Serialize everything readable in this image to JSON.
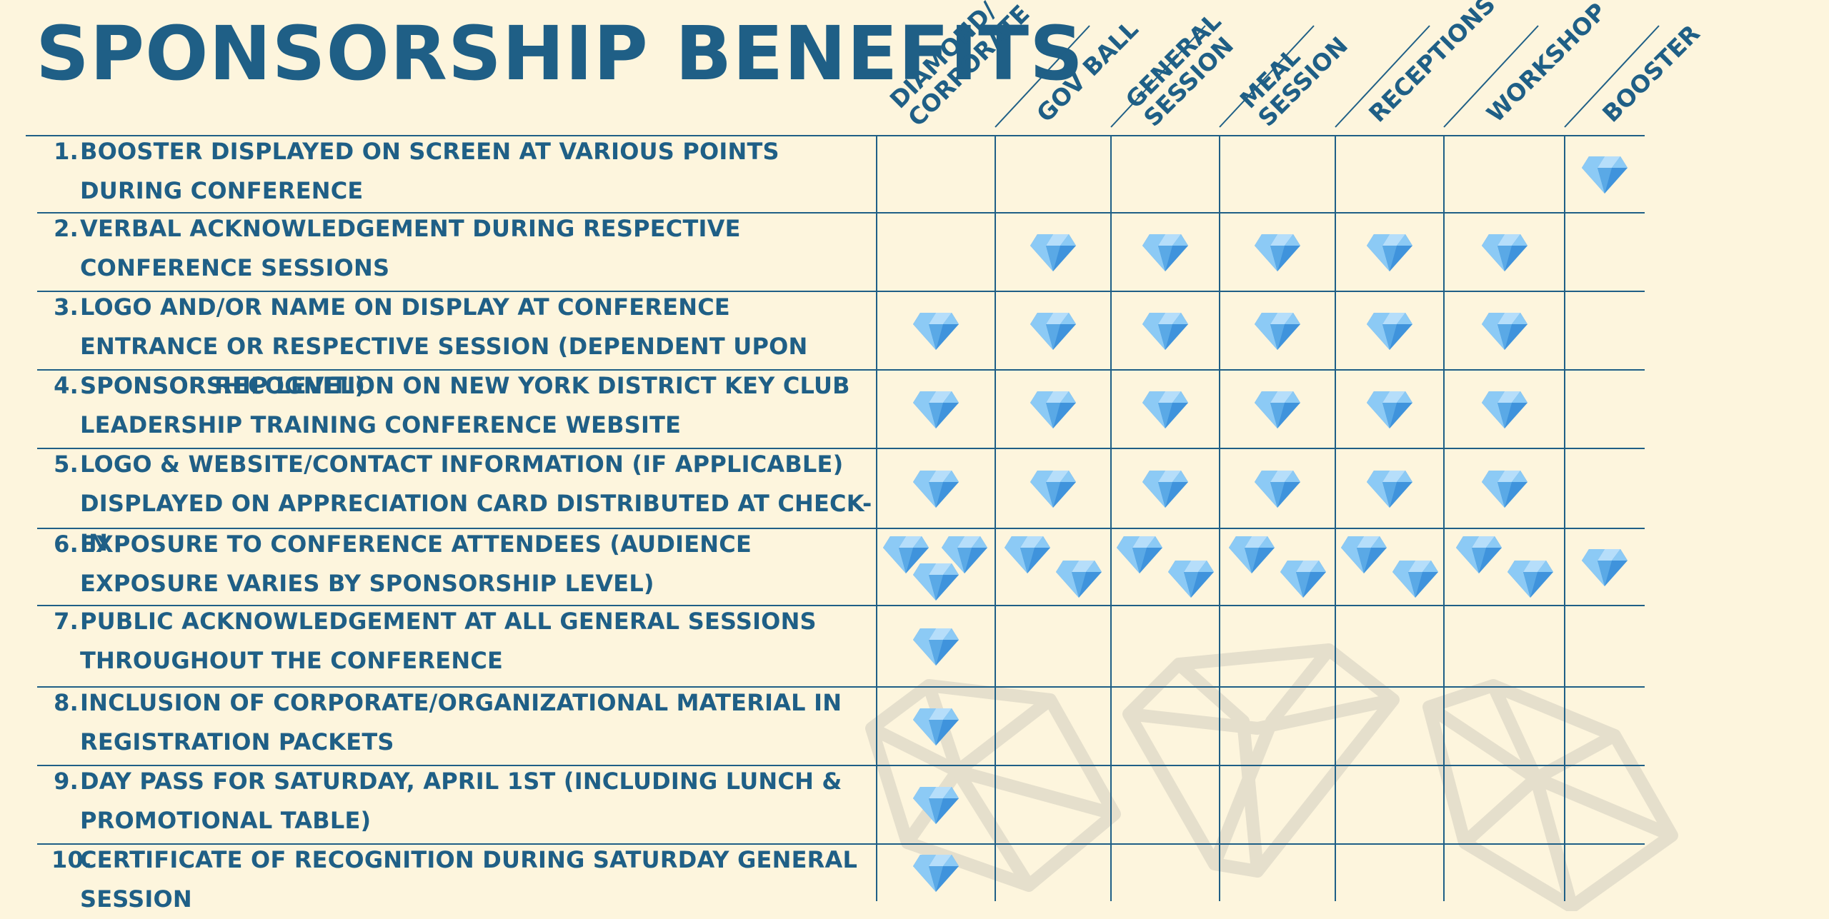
{
  "title": "SPONSORSHIP BENEFITS",
  "columns": [
    {
      "line1": "DIAMOND/",
      "line2": "CORPORATE"
    },
    {
      "line1": "GOV BALL",
      "line2": ""
    },
    {
      "line1": "GENERAL",
      "line2": "SESSION"
    },
    {
      "line1": "MEAL",
      "line2": "SESSION"
    },
    {
      "line1": "RECEPTIONS",
      "line2": ""
    },
    {
      "line1": "WORKSHOP",
      "line2": ""
    },
    {
      "line1": "BOOSTER",
      "line2": ""
    }
  ],
  "benefits": [
    {
      "num": "1.",
      "text": "BOOSTER DISPLAYED ON SCREEN AT VARIOUS POINTS DURING CONFERENCE"
    },
    {
      "num": "2.",
      "text": "VERBAL ACKNOWLEDGEMENT DURING RESPECTIVE CONFERENCE SESSIONS"
    },
    {
      "num": "3.",
      "text": "LOGO AND/OR NAME ON DISPLAY AT CONFERENCE ENTRANCE OR RESPECTIVE SESSION (DEPENDENT UPON SPONSORSHIP LEVEL)"
    },
    {
      "num": "4.",
      "text": "SPONSOR RECOGNITION ON NEW YORK DISTRICT KEY CLUB LEADERSHIP TRAINING CONFERENCE WEBSITE"
    },
    {
      "num": "5.",
      "text": " LOGO & WEBSITE/CONTACT INFORMATION (IF APPLICABLE) DISPLAYED ON APPRECIATION CARD DISTRIBUTED AT CHECK-IN"
    },
    {
      "num": "6.",
      "text": "EXPOSURE TO CONFERENCE ATTENDEES (AUDIENCE EXPOSURE VARIES BY SPONSORSHIP LEVEL)"
    },
    {
      "num": "7.",
      "text": "PUBLIC ACKNOWLEDGEMENT AT ALL GENERAL SESSIONS THROUGHOUT THE CONFERENCE"
    },
    {
      "num": "8.",
      "text": "INCLUSION OF CORPORATE/ORGANIZATIONAL MATERIAL IN REGISTRATION PACKETS"
    },
    {
      "num": "9.",
      "text": "DAY PASS FOR SATURDAY, APRIL 1ST (INCLUDING LUNCH & PROMOTIONAL TABLE)"
    },
    {
      "num": "10.",
      "text": "CERTIFICATE OF RECOGNITION DURING SATURDAY GENERAL SESSION"
    }
  ],
  "benefit_icon_counts": [
    [
      0,
      0,
      0,
      0,
      0,
      0,
      1
    ],
    [
      0,
      1,
      1,
      1,
      1,
      1,
      0
    ],
    [
      1,
      1,
      1,
      1,
      1,
      1,
      0
    ],
    [
      1,
      1,
      1,
      1,
      1,
      1,
      0
    ],
    [
      1,
      1,
      1,
      1,
      1,
      1,
      0
    ],
    [
      3,
      2,
      2,
      2,
      2,
      2,
      1
    ],
    [
      1,
      0,
      0,
      0,
      0,
      0,
      0
    ],
    [
      1,
      0,
      0,
      0,
      0,
      0,
      0
    ],
    [
      1,
      0,
      0,
      0,
      0,
      0,
      0
    ],
    [
      1,
      0,
      0,
      0,
      0,
      0,
      0
    ]
  ],
  "icon": "gem-icon",
  "colors": {
    "background": "#fdf5dd",
    "text": "#1f5f86",
    "grid": "#1f5f86",
    "gem_light": "#8ccaf5",
    "gem_dark": "#3f93dc",
    "watermark": "#e5dfcc"
  }
}
